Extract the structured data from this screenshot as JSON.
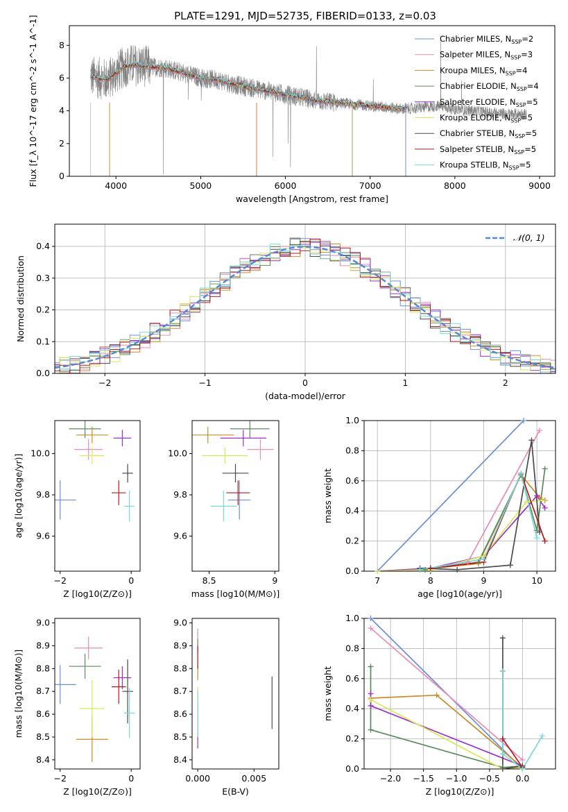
{
  "figure": {
    "title": "PLATE=1291, MJD=52735, FIBERID=0133, z=0.03"
  },
  "model_colors": [
    "#6a8fd8",
    "#e98ab8",
    "#c98a2a",
    "#5c8a5c",
    "#9a2fc7",
    "#d8e85a",
    "#4a4a4a",
    "#b01a1a",
    "#7ad8d8"
  ],
  "model_names": [
    "Chabrier MILES",
    "Salpeter MILES",
    "Kroupa MILES",
    "Chabrier ELODIE",
    "Salpeter ELODIE",
    "Kroupa ELODIE",
    "Chabrier STELIB",
    "Salpeter STELIB",
    "Kroupa STELIB"
  ],
  "chart_data": [
    {
      "type": "line",
      "title": "PLATE=1291, MJD=52735, FIBERID=0133, z=0.03",
      "xlabel": "wavelength [Angstrom, rest frame]",
      "ylabel": "Flux [f_λ 10^-17 erg cm^-2 s^-1 A^-1]",
      "xlim": [
        3450,
        9180
      ],
      "ylim": [
        0,
        9.2
      ],
      "xticks": [
        4000,
        5000,
        6000,
        7000,
        8000,
        9000
      ],
      "yticks": [
        0,
        2,
        4,
        6,
        8
      ],
      "legend": [
        "Chabrier MILES, N_SSP=2",
        "Salpeter MILES, N_SSP=3",
        "Kroupa MILES, N_SSP=4",
        "Chabrier ELODIE, N_SSP=4",
        "Salpeter ELODIE, N_SSP=5",
        "Kroupa ELODIE, N_SSP=5",
        "Chabrier STELIB, N_SSP=5",
        "Salpeter STELIB, N_SSP=5",
        "Kroupa STELIB, N_SSP=5"
      ],
      "legend_position": "top-right",
      "spectrum_continuum": [
        [
          3700,
          6.1
        ],
        [
          3800,
          6.0
        ],
        [
          3900,
          5.9
        ],
        [
          4000,
          6.3
        ],
        [
          4100,
          6.7
        ],
        [
          4200,
          6.8
        ],
        [
          4400,
          6.7
        ],
        [
          4600,
          6.6
        ],
        [
          4800,
          6.3
        ],
        [
          5000,
          6.0
        ],
        [
          5200,
          5.9
        ],
        [
          5400,
          5.6
        ],
        [
          5600,
          5.4
        ],
        [
          5800,
          5.2
        ],
        [
          6000,
          5.0
        ],
        [
          6200,
          4.8
        ],
        [
          6400,
          4.6
        ],
        [
          6600,
          4.5
        ],
        [
          6800,
          4.4
        ],
        [
          7000,
          4.3
        ],
        [
          7200,
          4.2
        ],
        [
          7400,
          4.1
        ],
        [
          7600,
          4.2
        ],
        [
          7800,
          4.3
        ],
        [
          8000,
          4.1
        ],
        [
          8200,
          4.0
        ],
        [
          8400,
          3.9
        ],
        [
          8600,
          3.8
        ],
        [
          8800,
          3.8
        ]
      ]
    },
    {
      "type": "histogram",
      "xlabel": "(data-model)/error",
      "ylabel": "Normed distribution",
      "xlim": [
        -2.5,
        2.5
      ],
      "ylim": [
        0,
        0.47
      ],
      "xticks": [
        -2,
        -1,
        0,
        1,
        2
      ],
      "yticks": [
        0.0,
        0.1,
        0.2,
        0.3,
        0.4
      ],
      "legend": [
        "𝒩(0, 1)"
      ],
      "legend_position": "top-right",
      "reference_curve": {
        "name": "𝒩(0, 1)",
        "mean": 0,
        "sigma": 1,
        "color": "#5588d8"
      },
      "bin_width": 0.1
    },
    {
      "type": "scatter",
      "xlabel": "Z [log10(Z/Z⊙)]",
      "ylabel": "age [log10(age/yr)]",
      "xlim": [
        -2.15,
        0.25
      ],
      "ylim": [
        9.43,
        10.16
      ],
      "xticks": [
        -2,
        0
      ],
      "yticks": [
        9.6,
        9.8,
        10.0
      ],
      "points": [
        [
          -2.0,
          9.775,
          0.9,
          0.19
        ],
        [
          -1.2,
          10.02,
          0.8,
          0.1
        ],
        [
          -1.1,
          10.09,
          0.9,
          0.08
        ],
        [
          -1.3,
          10.12,
          0.9,
          0.09
        ],
        [
          -0.25,
          10.075,
          0.5,
          0.08
        ],
        [
          -1.1,
          9.99,
          0.7,
          0.08
        ],
        [
          -0.1,
          9.905,
          0.3,
          0.09
        ],
        [
          -0.35,
          9.81,
          0.4,
          0.12
        ],
        [
          -0.05,
          9.745,
          0.3,
          0.15
        ]
      ]
    },
    {
      "type": "scatter",
      "xlabel": "mass [log10(M/M⊙)]",
      "ylabel": "",
      "xlim": [
        8.37,
        9.03
      ],
      "ylim": [
        9.43,
        10.16
      ],
      "xticks": [
        8.5,
        9.0
      ],
      "yticks": [
        9.6,
        9.8,
        10.0
      ],
      "points": [
        [
          8.73,
          9.775,
          0.17,
          0.19
        ],
        [
          8.89,
          10.02,
          0.2,
          0.1
        ],
        [
          8.49,
          10.09,
          0.4,
          0.08
        ],
        [
          8.81,
          10.12,
          0.3,
          0.09
        ],
        [
          8.76,
          10.075,
          0.35,
          0.08
        ],
        [
          8.62,
          9.99,
          0.35,
          0.08
        ],
        [
          8.7,
          9.905,
          0.2,
          0.09
        ],
        [
          8.72,
          9.81,
          0.18,
          0.12
        ],
        [
          8.61,
          9.745,
          0.2,
          0.15
        ]
      ]
    },
    {
      "type": "line",
      "xlabel": "age [log10(age/yr)]",
      "ylabel": "mass weight",
      "xlim": [
        6.75,
        10.35
      ],
      "ylim": [
        0,
        1.0
      ],
      "xticks": [
        7,
        8,
        9,
        10
      ],
      "yticks": [
        0.0,
        0.2,
        0.4,
        0.6,
        0.8,
        1.0
      ],
      "series": [
        {
          "name": "Chabrier MILES",
          "points": [
            [
              7.0,
              0.0
            ],
            [
              9.75,
              1.0
            ]
          ]
        },
        {
          "name": "Salpeter MILES",
          "points": [
            [
              7.9,
              0.01
            ],
            [
              8.7,
              0.06
            ],
            [
              10.05,
              0.935
            ]
          ]
        },
        {
          "name": "Kroupa MILES",
          "points": [
            [
              7.8,
              0.01
            ],
            [
              8.9,
              0.05
            ],
            [
              9.7,
              0.64
            ],
            [
              10.05,
              0.49
            ],
            [
              10.15,
              0.47
            ]
          ]
        },
        {
          "name": "Chabrier ELODIE",
          "points": [
            [
              7.9,
              0.01
            ],
            [
              8.9,
              0.06
            ],
            [
              9.7,
              0.64
            ],
            [
              10.0,
              0.27
            ],
            [
              10.15,
              0.68
            ]
          ]
        },
        {
          "name": "Salpeter ELODIE",
          "points": [
            [
              7.0,
              0.0
            ],
            [
              8.0,
              0.02
            ],
            [
              9.0,
              0.1
            ],
            [
              10.0,
              0.5
            ],
            [
              10.15,
              0.42
            ]
          ]
        },
        {
          "name": "Kroupa ELODIE",
          "points": [
            [
              7.0,
              0.0
            ],
            [
              8.0,
              0.01
            ],
            [
              9.0,
              0.1
            ],
            [
              9.8,
              0.46
            ],
            [
              10.1,
              0.47
            ]
          ]
        },
        {
          "name": "Chabrier STELIB",
          "points": [
            [
              7.8,
              0.02
            ],
            [
              8.5,
              0.01
            ],
            [
              9.5,
              0.04
            ],
            [
              9.9,
              0.87
            ],
            [
              10.05,
              0.26
            ]
          ]
        },
        {
          "name": "Salpeter STELIB",
          "points": [
            [
              8.0,
              0.02
            ],
            [
              9.0,
              0.06
            ],
            [
              9.7,
              0.65
            ],
            [
              10.15,
              0.2
            ]
          ]
        },
        {
          "name": "Kroupa STELIB",
          "points": [
            [
              7.8,
              0.01
            ],
            [
              9.0,
              0.08
            ],
            [
              9.7,
              0.65
            ],
            [
              10.0,
              0.22
            ]
          ]
        }
      ]
    },
    {
      "type": "scatter",
      "xlabel": "Z [log10(Z/Z⊙)]",
      "ylabel": "mass [log10(M/M⊙)]",
      "xlim": [
        -2.15,
        0.25
      ],
      "ylim": [
        8.36,
        9.02
      ],
      "xticks": [
        -2,
        0
      ],
      "yticks": [
        8.4,
        8.5,
        8.6,
        8.7,
        8.8,
        8.9,
        9.0
      ],
      "points": [
        [
          -2.0,
          8.73,
          0.9,
          0.17
        ],
        [
          -1.2,
          8.89,
          0.8,
          0.1
        ],
        [
          -1.1,
          8.49,
          0.9,
          0.2
        ],
        [
          -1.3,
          8.81,
          0.9,
          0.11
        ],
        [
          -0.25,
          8.76,
          0.5,
          0.1
        ],
        [
          -1.1,
          8.625,
          0.7,
          0.25
        ],
        [
          -0.1,
          8.7,
          0.3,
          0.28
        ],
        [
          -0.35,
          8.72,
          0.4,
          0.15
        ],
        [
          -0.05,
          8.605,
          0.3,
          0.22
        ]
      ]
    },
    {
      "type": "scatter",
      "xlabel": "E(B-V)",
      "ylabel": "",
      "xlim": [
        -0.0005,
        0.0072
      ],
      "ylim": [
        8.36,
        9.02
      ],
      "xticks": [
        0.0,
        0.005
      ],
      "yticks": [
        8.4,
        8.5,
        8.6,
        8.7,
        8.8,
        8.9,
        9.0
      ],
      "points": [
        [
          0.0,
          8.85,
          0.1
        ],
        [
          0.0,
          8.95,
          0.05
        ],
        [
          0.0,
          8.78,
          0.06
        ],
        [
          0.0,
          8.9,
          0.06
        ],
        [
          0.0,
          8.55,
          0.2
        ],
        [
          0.0,
          8.62,
          0.2
        ],
        [
          0.0066,
          8.65,
          0.23
        ],
        [
          0.0,
          8.85,
          0.1
        ],
        [
          0.0,
          8.6,
          0.2
        ]
      ]
    },
    {
      "type": "line",
      "xlabel": "Z [log10(Z/Z⊙)]",
      "ylabel": "mass weight",
      "xlim": [
        -2.4,
        0.5
      ],
      "ylim": [
        0,
        1.0
      ],
      "xticks": [
        -2.0,
        -1.5,
        -1.0,
        -0.5,
        0.0
      ],
      "yticks": [
        0.0,
        0.2,
        0.4,
        0.6,
        0.8,
        1.0
      ],
      "series": [
        {
          "name": "Chabrier MILES",
          "points": [
            [
              -2.3,
              1.0
            ],
            [
              0.0,
              0.0
            ]
          ]
        },
        {
          "name": "Salpeter MILES",
          "points": [
            [
              -2.3,
              0.935
            ],
            [
              0.0,
              0.06
            ]
          ]
        },
        {
          "name": "Kroupa MILES",
          "points": [
            [
              -2.3,
              0.47
            ],
            [
              -1.3,
              0.49
            ],
            [
              0.0,
              0.01
            ]
          ]
        },
        {
          "name": "Chabrier ELODIE",
          "points": [
            [
              -2.3,
              0.68
            ],
            [
              -2.3,
              0.26
            ],
            [
              -0.3,
              0.01
            ],
            [
              0.0,
              0.02
            ]
          ]
        },
        {
          "name": "Salpeter ELODIE",
          "points": [
            [
              -2.3,
              0.5
            ],
            [
              -2.3,
              0.42
            ],
            [
              0.0,
              0.02
            ]
          ]
        },
        {
          "name": "Kroupa ELODIE",
          "points": [
            [
              -2.3,
              0.46
            ],
            [
              -0.3,
              0.0
            ],
            [
              0.0,
              0.01
            ]
          ]
        },
        {
          "name": "Chabrier STELIB",
          "points": [
            [
              -0.3,
              0.87
            ],
            [
              -0.3,
              0.0
            ],
            [
              0.0,
              0.02
            ]
          ]
        },
        {
          "name": "Salpeter STELIB",
          "points": [
            [
              -0.3,
              0.65
            ],
            [
              -0.3,
              0.2
            ],
            [
              0.0,
              0.01
            ]
          ]
        },
        {
          "name": "Kroupa STELIB",
          "points": [
            [
              -0.3,
              0.65
            ],
            [
              -0.3,
              0.1
            ],
            [
              0.0,
              0.0
            ],
            [
              0.3,
              0.22
            ]
          ]
        }
      ]
    }
  ]
}
